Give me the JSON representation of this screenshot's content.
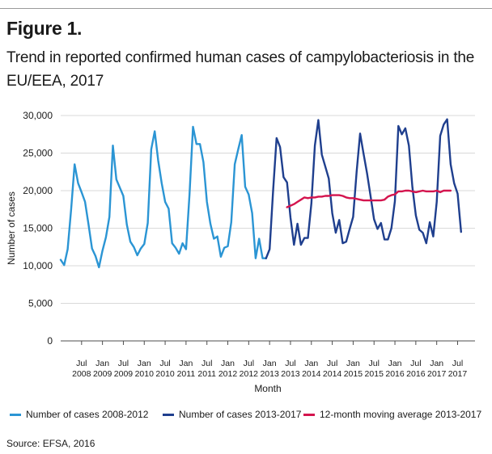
{
  "figure": {
    "label": "Figure 1.",
    "title": "Trend in reported confirmed human cases of campylobacteriosis in the EU/EEA, 2017"
  },
  "colors": {
    "series_2008_2012": "#2b95d4",
    "series_2013_2017": "#1f3f8e",
    "moving_average": "#d4144e",
    "grid": "#d9d9d9",
    "axis": "#4d4d4d"
  },
  "source": "Source: EFSA, 2016",
  "chart_data": {
    "type": "line",
    "xlabel": "Month",
    "ylabel": "Number of cases",
    "ylim": [
      0,
      30000
    ],
    "yticks": [
      0,
      5000,
      10000,
      15000,
      20000,
      25000,
      30000
    ],
    "ytick_labels": [
      "0",
      "5,000",
      "10,000",
      "15,000",
      "20,000",
      "25,000",
      "30,000"
    ],
    "grid": true,
    "legend_position": "bottom",
    "x_start": "Jan 2008",
    "x_end": "Dec 2017",
    "xtick_labels": [
      {
        "month": "Jul",
        "year": "2008",
        "index": 6
      },
      {
        "month": "Jan",
        "year": "2009",
        "index": 12
      },
      {
        "month": "Jul",
        "year": "2009",
        "index": 18
      },
      {
        "month": "Jan",
        "year": "2010",
        "index": 24
      },
      {
        "month": "Jul",
        "year": "2010",
        "index": 30
      },
      {
        "month": "Jan",
        "year": "2011",
        "index": 36
      },
      {
        "month": "Jul",
        "year": "2011",
        "index": 42
      },
      {
        "month": "Jan",
        "year": "2012",
        "index": 48
      },
      {
        "month": "Jul",
        "year": "2012",
        "index": 54
      },
      {
        "month": "Jan",
        "year": "2013",
        "index": 60
      },
      {
        "month": "Jul",
        "year": "2013",
        "index": 66
      },
      {
        "month": "Jan",
        "year": "2014",
        "index": 72
      },
      {
        "month": "Jul",
        "year": "2014",
        "index": 78
      },
      {
        "month": "Jan",
        "year": "2015",
        "index": 84
      },
      {
        "month": "Jul",
        "year": "2015",
        "index": 90
      },
      {
        "month": "Jan",
        "year": "2016",
        "index": 96
      },
      {
        "month": "Jul",
        "year": "2016",
        "index": 102
      },
      {
        "month": "Jan",
        "year": "2017",
        "index": 108
      },
      {
        "month": "Jul",
        "year": "2017",
        "index": 114
      }
    ],
    "series": [
      {
        "name": "Number of cases 2008-2012",
        "color_key": "series_2008_2012",
        "start_index": 0,
        "values": [
          10800,
          10100,
          12200,
          17500,
          23500,
          21000,
          19800,
          18500,
          15500,
          12300,
          11300,
          9800,
          12000,
          13800,
          16500,
          26000,
          21500,
          20400,
          19300,
          15500,
          13200,
          12500,
          11400,
          12300,
          12900,
          15700,
          25500,
          27900,
          24000,
          21000,
          18500,
          17600,
          13000,
          12400,
          11600,
          13000,
          12200,
          19500,
          28500,
          26200,
          26200,
          23800,
          18500,
          15600,
          13600,
          13900,
          11200,
          12400,
          12600,
          15800,
          23500,
          25500,
          27400,
          20500,
          19500,
          17000,
          11000,
          13600,
          11000,
          11000
        ]
      },
      {
        "name": "Number of cases 2013-2017",
        "color_key": "series_2013_2017",
        "start_index": 59,
        "values": [
          11000,
          12200,
          20000,
          27000,
          25800,
          21800,
          21100,
          16400,
          12800,
          15600,
          12800,
          13700,
          13700,
          18300,
          26000,
          29400,
          24800,
          23200,
          21600,
          17000,
          14400,
          16100,
          13000,
          13200,
          14900,
          16500,
          22500,
          27600,
          24900,
          22300,
          19300,
          16200,
          14900,
          15700,
          13500,
          13500,
          15000,
          18600,
          28600,
          27500,
          28300,
          26000,
          20500,
          16700,
          14800,
          14400,
          13000,
          15800,
          13900,
          18500,
          27300,
          28800,
          29500,
          23500,
          21000,
          19600,
          14500
        ]
      },
      {
        "name": "12-month moving average 2013-2017",
        "color_key": "moving_average",
        "start_index": 65,
        "values": [
          17800,
          18000,
          18200,
          18500,
          18800,
          19100,
          19000,
          19100,
          19100,
          19200,
          19200,
          19300,
          19300,
          19400,
          19400,
          19400,
          19300,
          19100,
          19000,
          19000,
          18900,
          18800,
          18700,
          18700,
          18700,
          18700,
          18700,
          18700,
          18800,
          19200,
          19400,
          19500,
          19900,
          19900,
          20000,
          20000,
          19900,
          19800,
          19900,
          20000,
          19900,
          19900,
          19900,
          20000,
          19800,
          20000,
          20000,
          20000
        ]
      }
    ]
  }
}
